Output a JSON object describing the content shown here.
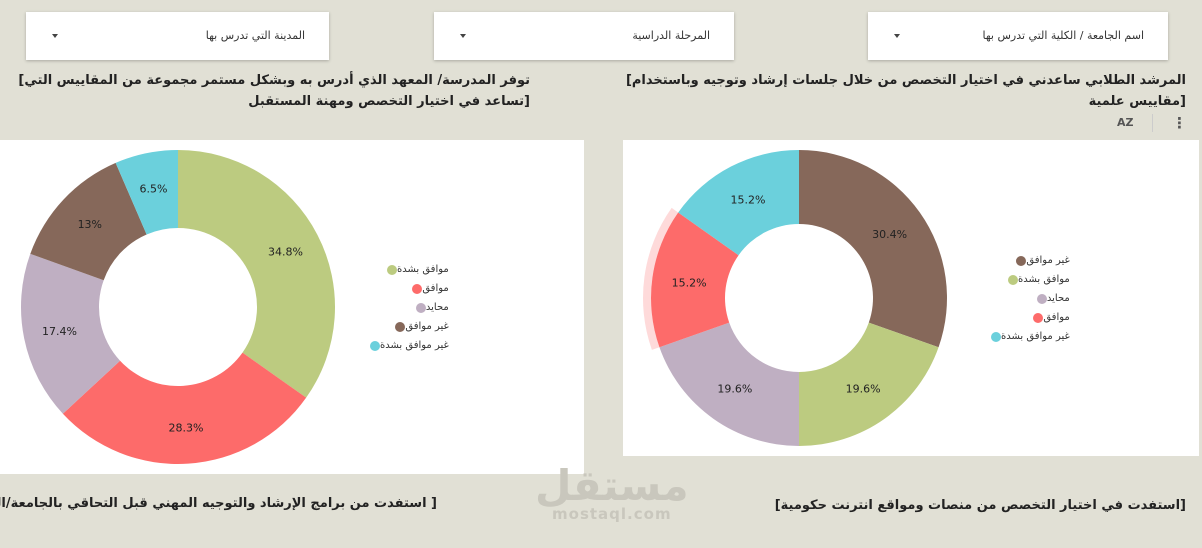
{
  "filters": [
    {
      "label": "المدينة التي تدرس بها"
    },
    {
      "label": "المرحلة الدراسية"
    },
    {
      "label": "اسم الجامعة / الكلية التي تدرس بها"
    }
  ],
  "titles": {
    "left_top_line1": "توفر المدرسة/ المعهد الذي أدرس به وبشكل مستمر مجموعة من المقاييس التي]",
    "left_top_line2": "[تساعد في اختيار التخصص ومهنة المستقبل",
    "right_top_line1": "المرشد الطلابي ساعدني في اختيار التخصص من خلال جلسات إرشاد وتوجيه وباستخدام]",
    "right_top_line2": "[مقاييس علمية",
    "left_bottom": "[ استفدت من برامج الإرشاد والتوجيه المهني قبل التحاقي بالجامعة/الكلية]",
    "right_bottom": "[استفدت في اختيار التخصص من منصات ومواقع انترنت حكومية]"
  },
  "toolbar": {
    "sort_icon": "sort-az-icon",
    "sort_label": "AZ",
    "menu_icon": "more-vert-icon",
    "menu_label": "⋮"
  },
  "watermark": {
    "main": "مستقل",
    "sub": "mostaql.com"
  },
  "chart_data": [
    {
      "type": "pie",
      "donut": true,
      "categories": [
        "موافق بشدة",
        "موافق",
        "محايد",
        "غير موافق",
        "غير موافق بشدة"
      ],
      "values": [
        34.8,
        28.3,
        17.4,
        13.0,
        6.5
      ],
      "labels": [
        "34.8%",
        "28.3%",
        "17.4%",
        "13%",
        "6.5%"
      ],
      "colors": [
        "#bccb80",
        "#fd6b6a",
        "#bfafc2",
        "#86685a",
        "#6bd0dc"
      ],
      "legend_position": "right"
    },
    {
      "type": "pie",
      "donut": true,
      "categories": [
        "غير موافق",
        "موافق بشدة",
        "محايد",
        "موافق",
        "غير موافق بشدة"
      ],
      "values": [
        30.4,
        19.6,
        19.6,
        15.2,
        15.2
      ],
      "labels": [
        "30.4%",
        "19.6%",
        "19.6%",
        "15.2%",
        "15.2%"
      ],
      "colors": [
        "#86685a",
        "#bccb80",
        "#bfafc2",
        "#fd6b6a",
        "#6bd0dc"
      ],
      "highlighted": "موافق",
      "legend_position": "right"
    }
  ]
}
